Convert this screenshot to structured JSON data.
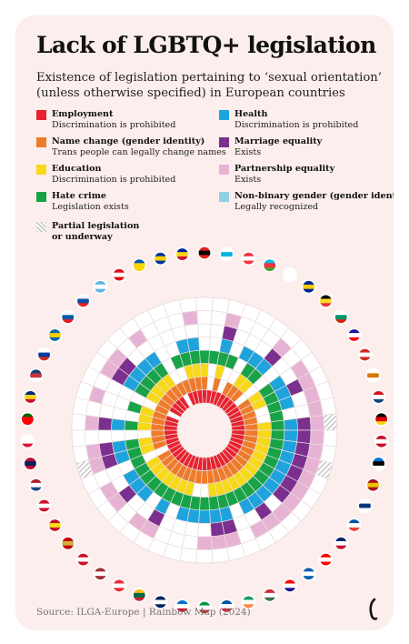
{
  "title": "Lack of LGBTQ+ legislation",
  "subtitle": "Existence of legislation pertaining to ‘sexual orientation’ (unless otherwise specified) in European countries",
  "source": "Source: ILGA-Europe | Rainbow Map (2024)",
  "chart_data": {
    "type": "radial-heatmap",
    "title": "Lack of LGBTQ+ legislation",
    "colors": {
      "employment": "#e8222e",
      "name_change": "#ef7b2a",
      "education": "#f7d917",
      "hate_crime": "#18a348",
      "health": "#1ea3dd",
      "marriage": "#7b2f8f",
      "partnership": "#e7b3d4",
      "nonbinary": "#8fd0e6",
      "partial": "#cccccc"
    },
    "legend": [
      {
        "key": "employment",
        "title": "Employment",
        "sub": "Discrimination is prohibited"
      },
      {
        "key": "name_change",
        "title": "Name change (gender identity)",
        "sub": "Trans people can legally change names"
      },
      {
        "key": "education",
        "title": "Education",
        "sub": "Discrimination is prohibited"
      },
      {
        "key": "hate_crime",
        "title": "Hate crime",
        "sub": "Legislation exists"
      },
      {
        "key": "partial",
        "title": "Partial legislation",
        "sub": "or underway"
      },
      {
        "key": "health",
        "title": "Health",
        "sub": "Discrimination is prohibited"
      },
      {
        "key": "marriage",
        "title": "Marriage equality",
        "sub": "Exists"
      },
      {
        "key": "partnership",
        "title": "Partnership equality",
        "sub": "Exists"
      },
      {
        "key": "nonbinary",
        "title": "Non-binary gender (gender identity)",
        "sub": "Legally recognized"
      }
    ],
    "categories": [
      "employment",
      "name_change",
      "education",
      "hate_crime",
      "health",
      "marriage",
      "partnership",
      "nonbinary"
    ],
    "countries": [
      {
        "flag": [
          "#e41e20",
          "#000000",
          "#e41e20"
        ],
        "values": [
          1,
          1,
          1,
          1,
          0,
          0,
          0,
          0
        ]
      },
      {
        "flag": [
          "#ffffff",
          "#00b5e2",
          "#ffffff"
        ],
        "values": [
          1,
          0,
          0,
          1,
          0,
          0,
          0,
          0
        ]
      },
      {
        "flag": [
          "#ef3340",
          "#ffffff",
          "#ef3340"
        ],
        "values": [
          1,
          1,
          1,
          1,
          1,
          1,
          1,
          0
        ]
      },
      {
        "flag": [
          "#00b9e4",
          "#ef3340",
          "#509e2f"
        ],
        "values": [
          1,
          0,
          0,
          1,
          0,
          0,
          0,
          0
        ]
      },
      {
        "flag": [
          "#ffffff",
          "#ffffff",
          "#ffffff"
        ],
        "values": [
          1,
          1,
          0,
          0,
          1,
          0,
          0,
          0
        ]
      },
      {
        "flag": [
          "#002395",
          "#fecb00",
          "#002395"
        ],
        "values": [
          1,
          1,
          1,
          1,
          1,
          0,
          0,
          0
        ]
      },
      {
        "flag": [
          "#000000",
          "#fdda24",
          "#ef3340"
        ],
        "values": [
          1,
          1,
          1,
          1,
          1,
          1,
          1,
          0
        ]
      },
      {
        "flag": [
          "#ffffff",
          "#00966e",
          "#d62612"
        ],
        "values": [
          1,
          0,
          0,
          0,
          0,
          0,
          0,
          0
        ]
      },
      {
        "flag": [
          "#171796",
          "#ffffff",
          "#ff0000"
        ],
        "values": [
          1,
          1,
          1,
          1,
          1,
          0,
          1,
          0
        ]
      },
      {
        "flag": [
          "#d52b1e",
          "#ffffff",
          "#d52b1e"
        ],
        "values": [
          1,
          1,
          1,
          1,
          1,
          1,
          1,
          0
        ]
      },
      {
        "flag": [
          "#ffffff",
          "#d57800",
          "#ffffff"
        ],
        "values": [
          1,
          1,
          0,
          1,
          1,
          0,
          1,
          0
        ]
      },
      {
        "flag": [
          "#d7141a",
          "#ffffff",
          "#11457e"
        ],
        "values": [
          1,
          1,
          0,
          1,
          0,
          0,
          1,
          0
        ]
      },
      {
        "flag": [
          "#000000",
          "#dd0000",
          "#ffce00"
        ],
        "values": [
          1,
          1,
          1,
          1,
          1,
          1,
          1,
          2
        ]
      },
      {
        "flag": [
          "#c8102e",
          "#ffffff",
          "#c8102e"
        ],
        "values": [
          1,
          1,
          1,
          1,
          1,
          1,
          1,
          0
        ]
      },
      {
        "flag": [
          "#0072ce",
          "#000000",
          "#ffffff"
        ],
        "values": [
          1,
          1,
          1,
          1,
          1,
          1,
          1,
          0
        ]
      },
      {
        "flag": [
          "#aa151b",
          "#f1bf00",
          "#aa151b"
        ],
        "values": [
          1,
          1,
          1,
          1,
          1,
          1,
          1,
          2
        ]
      },
      {
        "flag": [
          "#ffffff",
          "#003580",
          "#ffffff"
        ],
        "values": [
          1,
          1,
          1,
          1,
          1,
          1,
          1,
          0
        ]
      },
      {
        "flag": [
          "#0055a4",
          "#ffffff",
          "#ef4135"
        ],
        "values": [
          1,
          1,
          1,
          1,
          1,
          1,
          1,
          0
        ]
      },
      {
        "flag": [
          "#012169",
          "#ffffff",
          "#c8102e"
        ],
        "values": [
          1,
          1,
          1,
          1,
          1,
          1,
          1,
          0
        ]
      },
      {
        "flag": [
          "#ff0000",
          "#ffffff",
          "#ff0000"
        ],
        "values": [
          1,
          1,
          1,
          1,
          1,
          0,
          1,
          0
        ]
      },
      {
        "flag": [
          "#0d5eaf",
          "#ffffff",
          "#0d5eaf"
        ],
        "values": [
          1,
          1,
          1,
          1,
          1,
          1,
          1,
          0
        ]
      },
      {
        "flag": [
          "#ff0000",
          "#ffffff",
          "#171796"
        ],
        "values": [
          1,
          1,
          1,
          1,
          1,
          0,
          1,
          0
        ]
      },
      {
        "flag": [
          "#cd2a3e",
          "#ffffff",
          "#436f4d"
        ],
        "values": [
          1,
          1,
          1,
          1,
          0,
          0,
          0,
          0
        ]
      },
      {
        "flag": [
          "#169b62",
          "#ffffff",
          "#ff883e"
        ],
        "values": [
          1,
          1,
          1,
          1,
          1,
          1,
          1,
          0
        ]
      },
      {
        "flag": [
          "#02529c",
          "#ffffff",
          "#dc1e35"
        ],
        "values": [
          1,
          1,
          1,
          1,
          1,
          1,
          1,
          0
        ]
      },
      {
        "flag": [
          "#009246",
          "#ffffff",
          "#ce2b37"
        ],
        "values": [
          1,
          1,
          0,
          1,
          1,
          0,
          1,
          0
        ]
      },
      {
        "flag": [
          "#0072ce",
          "#ffffff",
          "#ce1126"
        ],
        "values": [
          1,
          1,
          0,
          1,
          1,
          0,
          0,
          0
        ]
      },
      {
        "flag": [
          "#00205b",
          "#ffffff",
          "#00205b"
        ],
        "values": [
          1,
          1,
          1,
          1,
          1,
          0,
          0,
          0
        ]
      },
      {
        "flag": [
          "#fdb913",
          "#006a44",
          "#c1272d"
        ],
        "values": [
          1,
          1,
          1,
          1,
          0,
          0,
          0,
          0
        ]
      },
      {
        "flag": [
          "#ed2939",
          "#ffffff",
          "#ed2939"
        ],
        "values": [
          1,
          1,
          1,
          1,
          1,
          1,
          1,
          0
        ]
      },
      {
        "flag": [
          "#9e3039",
          "#ffffff",
          "#9e3039"
        ],
        "values": [
          1,
          1,
          1,
          1,
          0,
          0,
          1,
          0
        ]
      },
      {
        "flag": [
          "#ce1126",
          "#ffffff",
          "#ce1126"
        ],
        "values": [
          1,
          1,
          1,
          1,
          1,
          0,
          0,
          0
        ]
      },
      {
        "flag": [
          "#c40308",
          "#d4af37",
          "#c40308"
        ],
        "values": [
          1,
          1,
          1,
          1,
          1,
          1,
          1,
          0
        ]
      },
      {
        "flag": [
          "#c8102e",
          "#f9dd16",
          "#c8102e"
        ],
        "values": [
          1,
          1,
          1,
          1,
          1,
          0,
          1,
          0
        ]
      },
      {
        "flag": [
          "#ce1126",
          "#ffffff",
          "#ce1126"
        ],
        "values": [
          1,
          0,
          0,
          1,
          0,
          0,
          0,
          0
        ]
      },
      {
        "flag": [
          "#ae1c28",
          "#ffffff",
          "#21468b"
        ],
        "values": [
          1,
          1,
          1,
          1,
          1,
          1,
          1,
          2
        ]
      },
      {
        "flag": [
          "#ba0c2f",
          "#00205b",
          "#ba0c2f"
        ],
        "values": [
          1,
          1,
          1,
          1,
          1,
          1,
          1,
          0
        ]
      },
      {
        "flag": [
          "#ffffff",
          "#ffffff",
          "#dc143c"
        ],
        "values": [
          1,
          1,
          0,
          0,
          0,
          0,
          0,
          0
        ]
      },
      {
        "flag": [
          "#006600",
          "#ff0000",
          "#ff0000"
        ],
        "values": [
          1,
          1,
          1,
          1,
          1,
          1,
          1,
          0
        ]
      },
      {
        "flag": [
          "#002b7f",
          "#fcd116",
          "#ce1126"
        ],
        "values": [
          1,
          1,
          1,
          0,
          0,
          0,
          0,
          0
        ]
      },
      {
        "flag": [
          "#0c4076",
          "#c6363c",
          "#ffffff"
        ],
        "values": [
          1,
          1,
          1,
          1,
          0,
          0,
          1,
          0
        ]
      },
      {
        "flag": [
          "#ffffff",
          "#0039a6",
          "#d52b1e"
        ],
        "values": [
          0,
          1,
          0,
          0,
          0,
          0,
          0,
          0
        ]
      },
      {
        "flag": [
          "#006aa7",
          "#fecc00",
          "#006aa7"
        ],
        "values": [
          1,
          1,
          1,
          1,
          1,
          1,
          1,
          0
        ]
      },
      {
        "flag": [
          "#ffffff",
          "#005da4",
          "#ed1c24"
        ],
        "values": [
          1,
          1,
          1,
          1,
          1,
          1,
          1,
          0
        ]
      },
      {
        "flag": [
          "#ffffff",
          "#0b4ea2",
          "#ee1c25"
        ],
        "values": [
          1,
          1,
          1,
          1,
          1,
          0,
          0,
          0
        ]
      },
      {
        "flag": [
          "#5eb6e4",
          "#ffffff",
          "#5eb6e4"
        ],
        "values": [
          1,
          1,
          1,
          1,
          1,
          0,
          1,
          0
        ]
      },
      {
        "flag": [
          "#e30a17",
          "#ffffff",
          "#e30a17"
        ],
        "values": [
          0,
          1,
          0,
          0,
          0,
          0,
          0,
          0
        ]
      },
      {
        "flag": [
          "#0057b7",
          "#ffd700",
          "#ffd700"
        ],
        "values": [
          1,
          1,
          0,
          1,
          0,
          0,
          0,
          0
        ]
      },
      {
        "flag": [
          "#0033a0",
          "#ffd100",
          "#0033a0"
        ],
        "values": [
          1,
          1,
          1,
          1,
          1,
          0,
          0,
          0
        ]
      },
      {
        "flag": [
          "#002395",
          "#fcd116",
          "#d21034"
        ],
        "values": [
          1,
          1,
          1,
          1,
          1,
          0,
          1,
          0
        ]
      }
    ]
  }
}
